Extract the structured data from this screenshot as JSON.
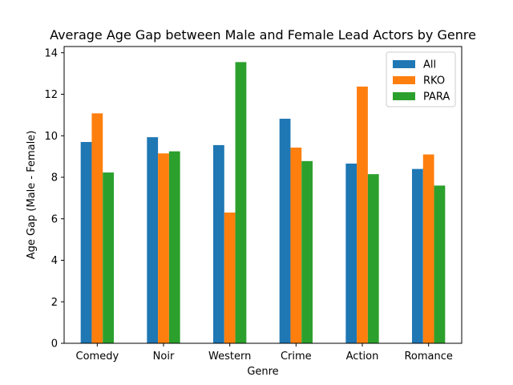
{
  "chart_data": {
    "type": "bar",
    "title": "Average Age Gap between Male and Female Lead Actors by Genre",
    "xlabel": "Genre",
    "ylabel": "Age Gap (Male - Female)",
    "ylim": [
      0,
      14.3
    ],
    "yticks": [
      0,
      2,
      4,
      6,
      8,
      10,
      12,
      14
    ],
    "categories": [
      "Comedy",
      "Noir",
      "Western",
      "Crime",
      "Action",
      "Romance"
    ],
    "series": [
      {
        "name": "All",
        "color": "#1f77b4",
        "values": [
          9.7,
          9.93,
          9.55,
          10.82,
          8.66,
          8.4
        ]
      },
      {
        "name": "RKO",
        "color": "#ff7f0e",
        "values": [
          11.08,
          9.15,
          6.3,
          9.43,
          12.37,
          9.1
        ]
      },
      {
        "name": "PARA",
        "color": "#2ca02c",
        "values": [
          8.23,
          9.25,
          13.55,
          8.78,
          8.15,
          7.6
        ]
      }
    ],
    "grid": false,
    "legend": "top-right"
  }
}
